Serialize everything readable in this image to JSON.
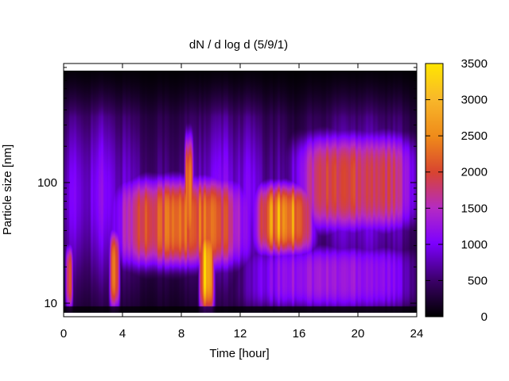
{
  "chart_data": {
    "type": "heatmap",
    "title": "dN / d log d (5/9/1)",
    "xlabel": "Time [hour]",
    "ylabel": "Particle size [nm]",
    "x_range": [
      0,
      24
    ],
    "x_ticks": [
      0,
      4,
      8,
      12,
      16,
      20,
      24
    ],
    "y_scale": "log",
    "y_range": [
      8,
      900
    ],
    "y_ticks": [
      10,
      100
    ],
    "colorbar": {
      "range": [
        0,
        3500
      ],
      "ticks": [
        0,
        500,
        1000,
        1500,
        2000,
        2500,
        3000,
        3500
      ],
      "colormap": [
        "#000000",
        "#3a0066",
        "#7d00ff",
        "#b52bc2",
        "#d84430",
        "#ef8a1a",
        "#ffe600"
      ]
    },
    "features": [
      {
        "time_range": [
          0.1,
          0.6
        ],
        "size_range": [
          9,
          30
        ],
        "peak_value": 2300
      },
      {
        "time_range": [
          3.1,
          3.8
        ],
        "size_range": [
          9,
          40
        ],
        "peak_value": 2600
      },
      {
        "time_range": [
          3.5,
          12.5
        ],
        "size_range": [
          20,
          110
        ],
        "peak_value": 2600
      },
      {
        "time_range": [
          8.2,
          8.8
        ],
        "size_range": [
          25,
          250
        ],
        "peak_value": 2900
      },
      {
        "time_range": [
          9.2,
          10.2
        ],
        "size_range": [
          8,
          45
        ],
        "peak_value": 3100
      },
      {
        "time_range": [
          12.3,
          24
        ],
        "size_range": [
          9,
          30
        ],
        "peak_value": 1500
      },
      {
        "time_range": [
          13,
          17
        ],
        "size_range": [
          25,
          100
        ],
        "peak_value": 2900
      },
      {
        "time_range": [
          15.5,
          24
        ],
        "size_range": [
          40,
          250
        ],
        "peak_value": 2300
      }
    ]
  }
}
